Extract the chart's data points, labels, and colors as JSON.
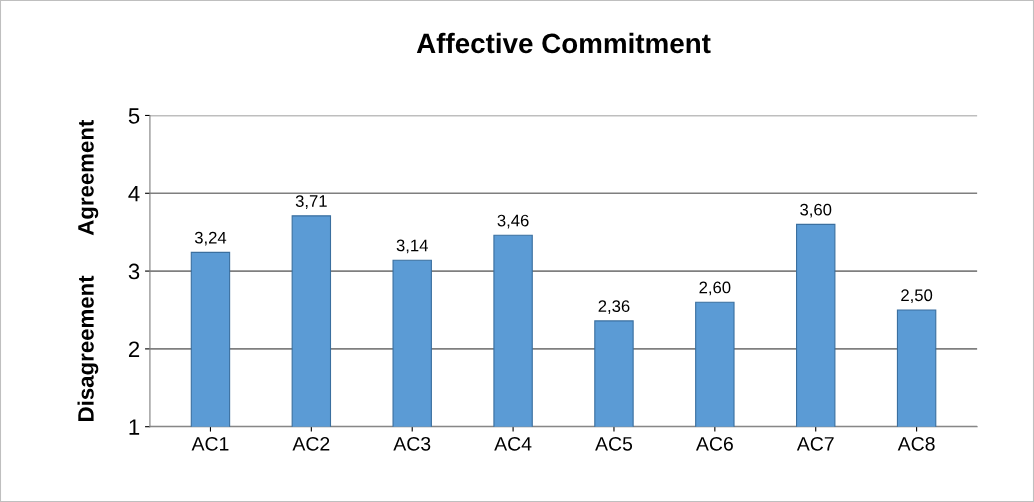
{
  "chart_data": {
    "type": "bar",
    "title": "Affective Commitment",
    "categories": [
      "AC1",
      "AC2",
      "AC3",
      "AC4",
      "AC5",
      "AC6",
      "AC7",
      "AC8"
    ],
    "values": [
      3.24,
      3.71,
      3.14,
      3.46,
      2.36,
      2.6,
      3.6,
      2.5
    ],
    "value_labels": [
      "3,24",
      "3,71",
      "3,14",
      "3,46",
      "2,36",
      "2,60",
      "3,60",
      "2,50"
    ],
    "color": "#5b9bd5",
    "ylim": [
      1,
      5
    ],
    "yticks": [
      1,
      2,
      3,
      4,
      5
    ],
    "grid": "y",
    "annotations": [
      "Disagreement",
      "Agreement"
    ]
  }
}
